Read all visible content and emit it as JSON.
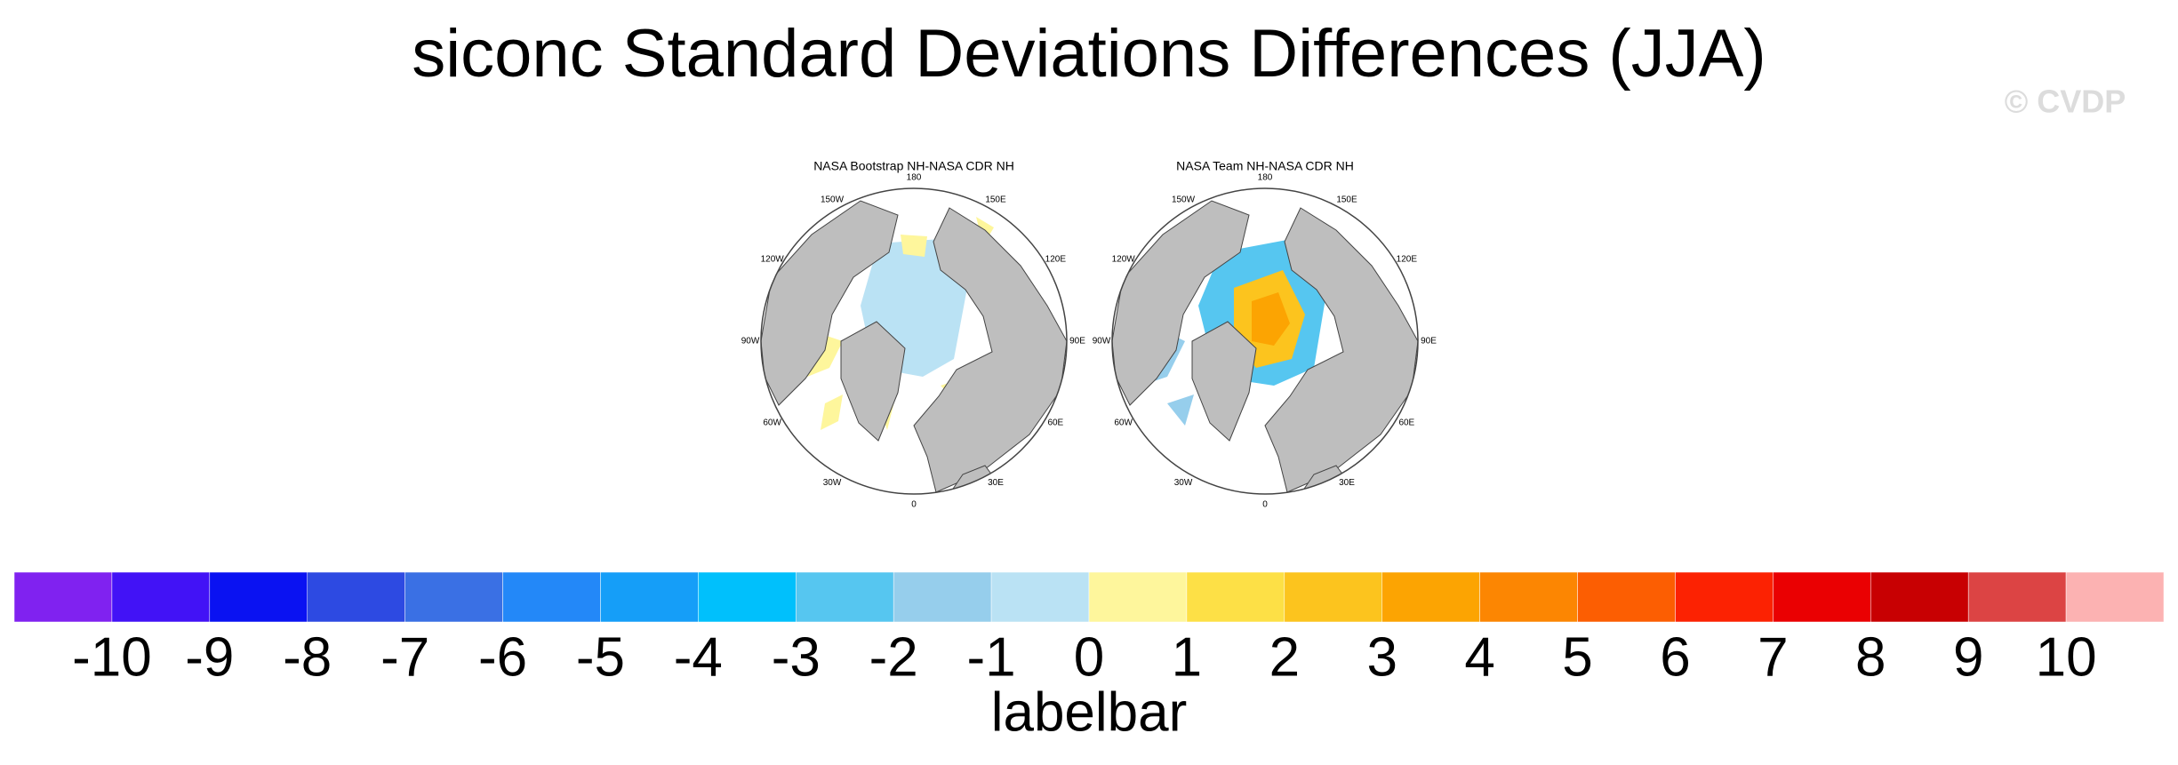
{
  "title": "siconc Standard Deviations Differences (JJA)",
  "watermark": "© CVDP",
  "panels": [
    {
      "title": "NASA Bootstrap NH-NASA CDR NH"
    },
    {
      "title": "NASA Team NH-NASA CDR NH"
    }
  ],
  "longitude_labels": [
    "0",
    "30E",
    "60E",
    "90E",
    "120E",
    "150E",
    "180",
    "150W",
    "120W",
    "90W",
    "60W",
    "30W"
  ],
  "colorbar": {
    "label": "labelbar",
    "ticks": [
      -10,
      -9,
      -8,
      -7,
      -6,
      -5,
      -4,
      -3,
      -2,
      -1,
      0,
      1,
      2,
      3,
      4,
      5,
      6,
      7,
      8,
      9,
      10
    ],
    "colors": [
      "#8022f0",
      "#4212f6",
      "#0a12f2",
      "#2d4ae2",
      "#3a70e4",
      "#2388f8",
      "#159ef8",
      "#00c0fc",
      "#56c6f0",
      "#96ceec",
      "#bae2f4",
      "#fef69c",
      "#fde046",
      "#fcc41e",
      "#fca402",
      "#fc8602",
      "#fc5e02",
      "#fc2202",
      "#ea0002",
      "#c80002",
      "#dc4444",
      "#fcb2b2"
    ]
  }
}
